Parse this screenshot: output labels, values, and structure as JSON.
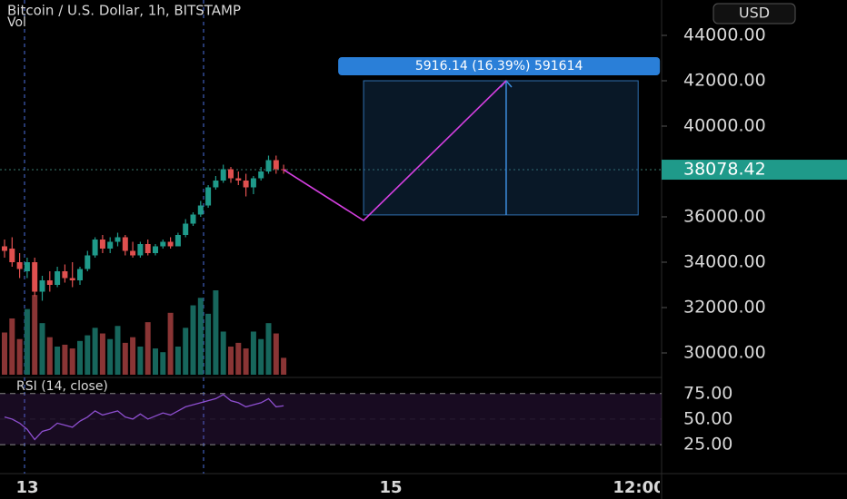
{
  "chart_data": {
    "type": "candlestick",
    "title": "Bitcoin / U.S. Dollar, 1h, BITSTAMP",
    "volume_label": "Vol",
    "currency_button": "USD",
    "up_color": "#1f9a8a",
    "down_color": "#e0504f",
    "candles": {
      "open": [
        34700,
        34600,
        34000,
        33600,
        34000,
        32700,
        33200,
        33000,
        33600,
        33300,
        33200,
        33700,
        34300,
        35000,
        34600,
        34900,
        35100,
        34500,
        34300,
        34800,
        34400,
        34700,
        34900,
        34700,
        35200,
        35700,
        36100,
        36500,
        37300,
        37600,
        38100,
        37700,
        37600,
        37300,
        37700,
        38000,
        38500,
        38100
      ],
      "high": [
        35000,
        35100,
        34400,
        34200,
        34200,
        33400,
        33600,
        33800,
        33900,
        34000,
        33800,
        34500,
        35100,
        35200,
        35100,
        35300,
        35200,
        34900,
        34900,
        35000,
        34800,
        35000,
        35100,
        35300,
        35900,
        36200,
        36700,
        37400,
        37800,
        38300,
        38200,
        38000,
        37900,
        37800,
        38200,
        38700,
        38700,
        38300
      ],
      "low": [
        34200,
        33800,
        33300,
        33300,
        32500,
        32300,
        32700,
        32900,
        33100,
        32900,
        33000,
        33600,
        34200,
        34400,
        34400,
        34700,
        34300,
        34200,
        34200,
        34300,
        34300,
        34600,
        34600,
        34700,
        35100,
        35600,
        36000,
        36400,
        37200,
        37500,
        37500,
        37400,
        36900,
        37000,
        37600,
        37900,
        37900,
        37900
      ],
      "close": [
        34500,
        34000,
        33700,
        34000,
        32700,
        33200,
        33000,
        33600,
        33300,
        33200,
        33700,
        34300,
        35000,
        34600,
        34900,
        35100,
        34500,
        34300,
        34800,
        34400,
        34700,
        34900,
        34700,
        35200,
        35700,
        36100,
        36500,
        37300,
        37600,
        38100,
        37700,
        37600,
        37300,
        37700,
        38000,
        38500,
        38100,
        38078.42
      ]
    },
    "volume": [
      45,
      60,
      38,
      70,
      85,
      55,
      40,
      30,
      32,
      28,
      36,
      42,
      50,
      44,
      38,
      52,
      34,
      40,
      30,
      56,
      28,
      24,
      66,
      30,
      50,
      74,
      82,
      65,
      90,
      46,
      30,
      34,
      28,
      46,
      38,
      55,
      44,
      18
    ],
    "ylim": [
      29000,
      45500
    ],
    "yticks": [
      {
        "value": 44000,
        "label": "44000.00"
      },
      {
        "value": 42000,
        "label": "42000.00"
      },
      {
        "value": 40000,
        "label": "40000.00"
      },
      {
        "value": 36000,
        "label": "36000.00"
      },
      {
        "value": 34000,
        "label": "34000.00"
      },
      {
        "value": 32000,
        "label": "32000.00"
      },
      {
        "value": 30000,
        "label": "30000.00"
      }
    ],
    "last_price": {
      "value": 38078.42,
      "label": "38078.42"
    },
    "projection": {
      "x": [
        37,
        47.6,
        66.5
      ],
      "values": [
        38078.42,
        35840,
        42000
      ]
    },
    "range_box": {
      "x": [
        47.6,
        84
      ],
      "low": 36083.86,
      "high": 42000,
      "label": "5916.14 (16.39%) 591614"
    },
    "rsi": {
      "label": "RSI (14, close)",
      "values": [
        52,
        50,
        46,
        40,
        30,
        38,
        40,
        46,
        44,
        42,
        48,
        52,
        58,
        54,
        56,
        58,
        52,
        50,
        55,
        50,
        53,
        56,
        54,
        58,
        62,
        64,
        66,
        68,
        70,
        74,
        68,
        66,
        62,
        64,
        66,
        70,
        62,
        63
      ],
      "ylim": [
        -6,
        89
      ],
      "yticks": [
        {
          "value": 75,
          "label": "75.00"
        },
        {
          "value": 50,
          "label": "50.00"
        },
        {
          "value": 25,
          "label": "25.00"
        }
      ]
    },
    "x_tick_labels": [
      "13",
      "15",
      "12:00"
    ]
  }
}
